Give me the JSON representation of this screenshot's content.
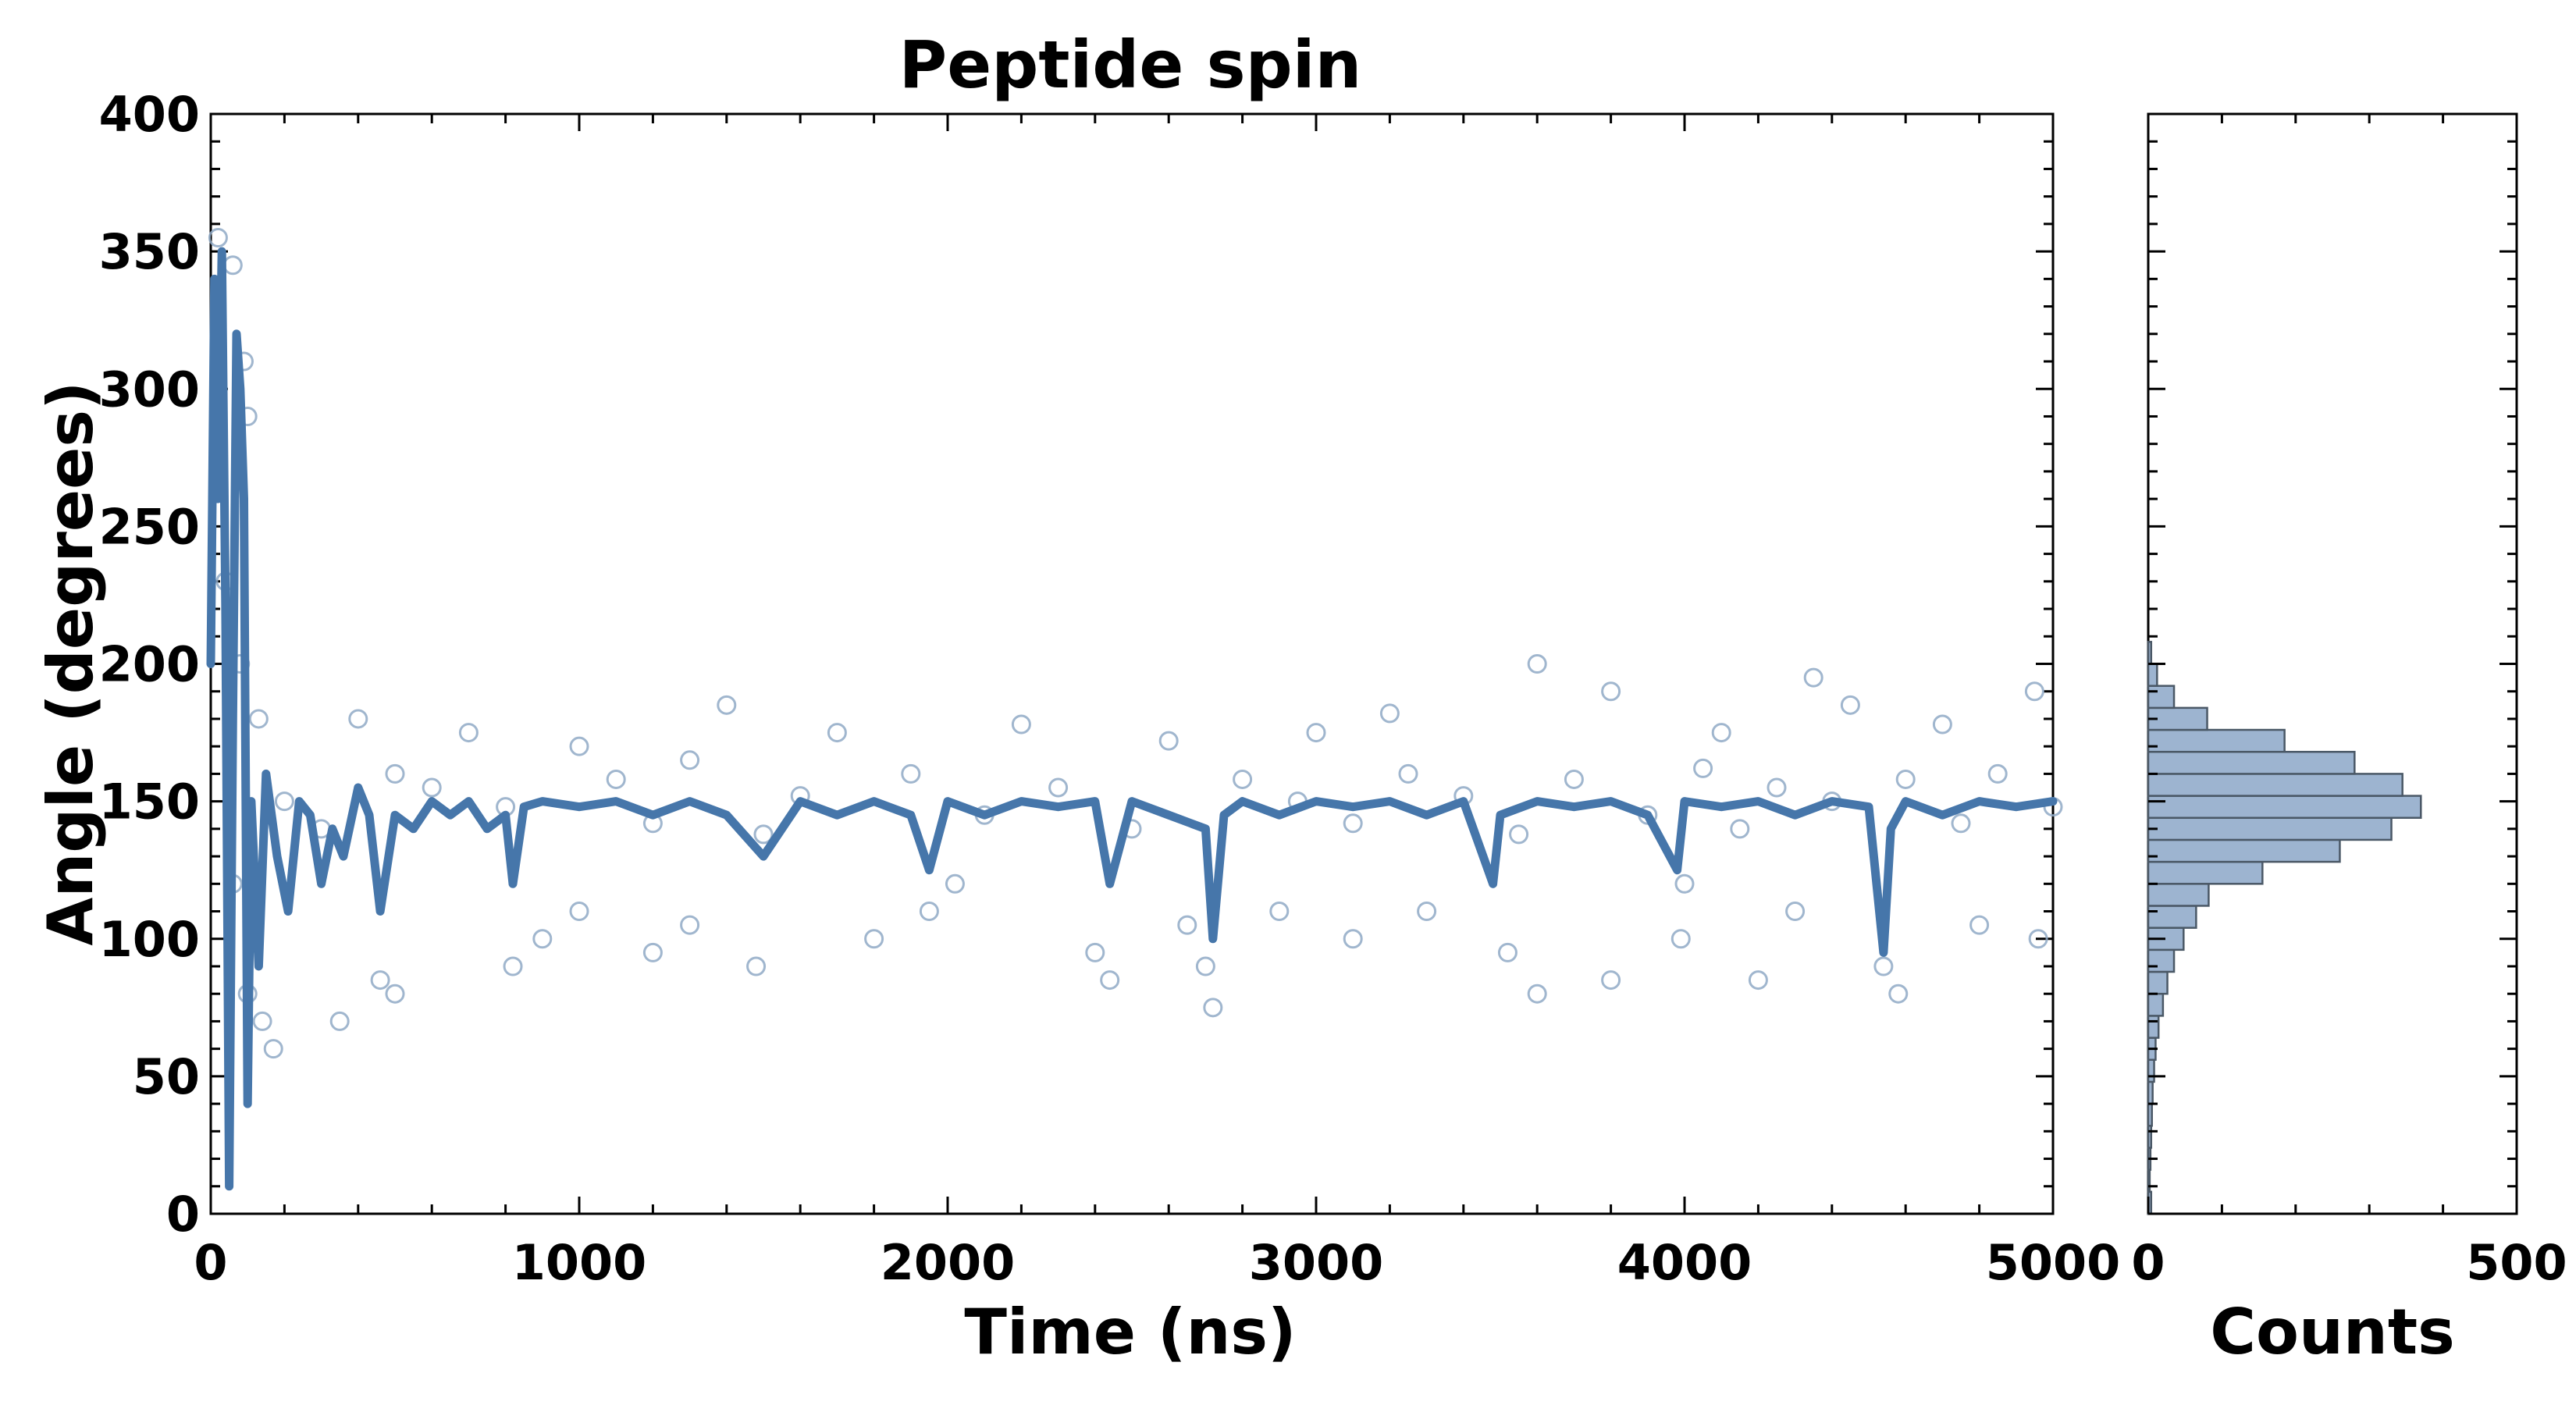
{
  "chart_data": [
    {
      "type": "scatter",
      "title": "Peptide spin",
      "xlabel": "Time (ns)",
      "ylabel": "Angle (degrees)",
      "xlim": [
        0,
        5000
      ],
      "ylim": [
        0,
        400
      ],
      "xticks": [
        0,
        1000,
        2000,
        3000,
        4000,
        5000
      ],
      "yticks": [
        0,
        50,
        100,
        150,
        200,
        250,
        300,
        350,
        400
      ],
      "colors": {
        "points": "#8fa9c6",
        "line": "#4676aa"
      },
      "grid": false,
      "series": [
        {
          "kind": "line",
          "values": [
            [
              0,
              200
            ],
            [
              10,
              340
            ],
            [
              20,
              260
            ],
            [
              30,
              350
            ],
            [
              40,
              220
            ],
            [
              50,
              10
            ],
            [
              60,
              180
            ],
            [
              70,
              320
            ],
            [
              80,
              300
            ],
            [
              90,
              260
            ],
            [
              100,
              40
            ],
            [
              110,
              150
            ],
            [
              130,
              90
            ],
            [
              150,
              160
            ],
            [
              180,
              130
            ],
            [
              210,
              110
            ],
            [
              240,
              150
            ],
            [
              270,
              145
            ],
            [
              300,
              120
            ],
            [
              330,
              140
            ],
            [
              360,
              130
            ],
            [
              400,
              155
            ],
            [
              430,
              145
            ],
            [
              460,
              110
            ],
            [
              500,
              145
            ],
            [
              550,
              140
            ],
            [
              600,
              150
            ],
            [
              650,
              145
            ],
            [
              700,
              150
            ],
            [
              750,
              140
            ],
            [
              800,
              145
            ],
            [
              820,
              120
            ],
            [
              850,
              148
            ],
            [
              900,
              150
            ],
            [
              1000,
              148
            ],
            [
              1100,
              150
            ],
            [
              1200,
              145
            ],
            [
              1300,
              150
            ],
            [
              1400,
              145
            ],
            [
              1500,
              130
            ],
            [
              1600,
              150
            ],
            [
              1700,
              145
            ],
            [
              1800,
              150
            ],
            [
              1900,
              145
            ],
            [
              1950,
              125
            ],
            [
              2000,
              150
            ],
            [
              2100,
              145
            ],
            [
              2200,
              150
            ],
            [
              2300,
              148
            ],
            [
              2400,
              150
            ],
            [
              2440,
              120
            ],
            [
              2500,
              150
            ],
            [
              2600,
              145
            ],
            [
              2700,
              140
            ],
            [
              2720,
              100
            ],
            [
              2750,
              145
            ],
            [
              2800,
              150
            ],
            [
              2900,
              145
            ],
            [
              3000,
              150
            ],
            [
              3100,
              148
            ],
            [
              3200,
              150
            ],
            [
              3300,
              145
            ],
            [
              3400,
              150
            ],
            [
              3480,
              120
            ],
            [
              3500,
              145
            ],
            [
              3600,
              150
            ],
            [
              3700,
              148
            ],
            [
              3800,
              150
            ],
            [
              3900,
              145
            ],
            [
              3980,
              125
            ],
            [
              4000,
              150
            ],
            [
              4100,
              148
            ],
            [
              4200,
              150
            ],
            [
              4300,
              145
            ],
            [
              4400,
              150
            ],
            [
              4500,
              148
            ],
            [
              4540,
              95
            ],
            [
              4560,
              140
            ],
            [
              4600,
              150
            ],
            [
              4700,
              145
            ],
            [
              4800,
              150
            ],
            [
              4900,
              148
            ],
            [
              5000,
              150
            ]
          ]
        },
        {
          "kind": "scatter",
          "values": [
            [
              20,
              355
            ],
            [
              60,
              345
            ],
            [
              90,
              310
            ],
            [
              100,
              290
            ],
            [
              40,
              230
            ],
            [
              80,
              200
            ],
            [
              130,
              180
            ],
            [
              60,
              120
            ],
            [
              100,
              80
            ],
            [
              140,
              70
            ],
            [
              170,
              60
            ],
            [
              350,
              70
            ],
            [
              460,
              85
            ],
            [
              500,
              80
            ],
            [
              820,
              90
            ],
            [
              900,
              100
            ],
            [
              1000,
              110
            ],
            [
              1200,
              95
            ],
            [
              1300,
              105
            ],
            [
              1480,
              90
            ],
            [
              1800,
              100
            ],
            [
              1950,
              110
            ],
            [
              2020,
              120
            ],
            [
              2400,
              95
            ],
            [
              2440,
              85
            ],
            [
              2650,
              105
            ],
            [
              2700,
              90
            ],
            [
              2720,
              75
            ],
            [
              2900,
              110
            ],
            [
              3100,
              100
            ],
            [
              3300,
              110
            ],
            [
              3520,
              95
            ],
            [
              3600,
              80
            ],
            [
              3800,
              85
            ],
            [
              3990,
              100
            ],
            [
              4000,
              120
            ],
            [
              4200,
              85
            ],
            [
              4300,
              110
            ],
            [
              4540,
              90
            ],
            [
              4580,
              80
            ],
            [
              4800,
              105
            ],
            [
              4960,
              100
            ],
            [
              400,
              180
            ],
            [
              700,
              175
            ],
            [
              1000,
              170
            ],
            [
              1400,
              185
            ],
            [
              1700,
              175
            ],
            [
              2200,
              178
            ],
            [
              2600,
              172
            ],
            [
              3000,
              175
            ],
            [
              3200,
              182
            ],
            [
              3600,
              200
            ],
            [
              3800,
              190
            ],
            [
              4100,
              175
            ],
            [
              4350,
              195
            ],
            [
              4450,
              185
            ],
            [
              4700,
              178
            ],
            [
              4950,
              190
            ],
            [
              200,
              150
            ],
            [
              300,
              140
            ],
            [
              500,
              160
            ],
            [
              600,
              155
            ],
            [
              800,
              148
            ],
            [
              1100,
              158
            ],
            [
              1200,
              142
            ],
            [
              1300,
              165
            ],
            [
              1500,
              138
            ],
            [
              1600,
              152
            ],
            [
              1900,
              160
            ],
            [
              2100,
              145
            ],
            [
              2300,
              155
            ],
            [
              2500,
              140
            ],
            [
              2800,
              158
            ],
            [
              2950,
              150
            ],
            [
              3100,
              142
            ],
            [
              3250,
              160
            ],
            [
              3400,
              152
            ],
            [
              3550,
              138
            ],
            [
              3700,
              158
            ],
            [
              3900,
              145
            ],
            [
              4050,
              162
            ],
            [
              4150,
              140
            ],
            [
              4250,
              155
            ],
            [
              4400,
              150
            ],
            [
              4600,
              158
            ],
            [
              4750,
              142
            ],
            [
              4850,
              160
            ],
            [
              5000,
              148
            ]
          ]
        }
      ]
    },
    {
      "type": "bar",
      "orientation": "horizontal",
      "xlabel": "Counts",
      "ylabel": "",
      "xlim": [
        0,
        500
      ],
      "ylim": [
        0,
        400
      ],
      "xticks": [
        0,
        500
      ],
      "colors": {
        "bars": "#9db4d0",
        "edge": "#4a5866"
      },
      "bins": [
        [
          0,
          4
        ],
        [
          8,
          2
        ],
        [
          16,
          3
        ],
        [
          24,
          4
        ],
        [
          32,
          5
        ],
        [
          40,
          6
        ],
        [
          48,
          8
        ],
        [
          56,
          10
        ],
        [
          64,
          14
        ],
        [
          72,
          20
        ],
        [
          80,
          26
        ],
        [
          88,
          35
        ],
        [
          96,
          48
        ],
        [
          104,
          65
        ],
        [
          112,
          82
        ],
        [
          120,
          155
        ],
        [
          128,
          260
        ],
        [
          136,
          330
        ],
        [
          144,
          370
        ],
        [
          152,
          345
        ],
        [
          160,
          280
        ],
        [
          168,
          185
        ],
        [
          176,
          80
        ],
        [
          184,
          35
        ],
        [
          192,
          12
        ],
        [
          200,
          4
        ]
      ]
    }
  ]
}
